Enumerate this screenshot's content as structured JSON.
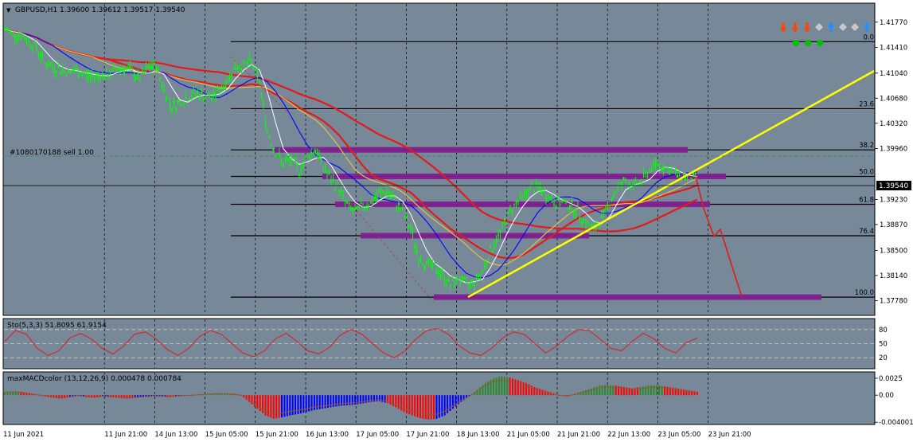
{
  "symbol_header": "GBPUSD,H1  1.39600 1.39612 1.39517 1.39540",
  "order_label": "#1080170188 sell 1.00",
  "current_price": "1.39540",
  "colors": {
    "background": "#778899",
    "candle": "#00ff00",
    "ema_red": "#e31a1a",
    "ma_blue": "#0000ff",
    "ma_yellow": "#e6c040",
    "ma_white": "#ffffff",
    "trendline": "#ffff00",
    "fib_zone": "#7f1f8f",
    "macd_up": "#2b8a2b",
    "macd_down": "#ff0000",
    "macd_blue": "#0000ff"
  },
  "chart_data": [
    {
      "type": "candlestick",
      "title": "GBPUSD,H1",
      "x_labels": [
        "11 Jun 2021",
        "11 Jun 21:00",
        "14 Jun 13:00",
        "15 Jun 05:00",
        "15 Jun 21:00",
        "16 Jun 13:00",
        "17 Jun 05:00",
        "17 Jun 21:00",
        "18 Jun 13:00",
        "21 Jun 05:00",
        "21 Jun 21:00",
        "22 Jun 13:00",
        "23 Jun 05:00",
        "23 Jun 21:00"
      ],
      "y_ticks": [
        "1.41770",
        "1.41410",
        "1.41040",
        "1.40680",
        "1.40320",
        "1.39960",
        "1.39230",
        "1.38870",
        "1.38500",
        "1.38140",
        "1.37780"
      ],
      "ylim": [
        1.3758,
        1.4203
      ],
      "close_path": [
        1.4167,
        1.416,
        1.4158,
        1.415,
        1.414,
        1.412,
        1.4112,
        1.411,
        1.4105,
        1.4108,
        1.4102,
        1.4098,
        1.4102,
        1.41,
        1.411,
        1.4112,
        1.4105,
        1.4095,
        1.4112,
        1.4115,
        1.408,
        1.4055,
        1.4062,
        1.407,
        1.4075,
        1.4072,
        1.407,
        1.408,
        1.4094,
        1.4115,
        1.4115,
        1.412,
        1.409,
        1.4022,
        1.399,
        1.3975,
        1.398,
        1.3965,
        1.3985,
        1.3995,
        1.397,
        1.395,
        1.3938,
        1.3915,
        1.3905,
        1.3915,
        1.3918,
        1.393,
        1.3935,
        1.392,
        1.3905,
        1.388,
        1.384,
        1.383,
        1.3825,
        1.3815,
        1.38,
        1.381,
        1.38,
        1.3805,
        1.382,
        1.385,
        1.387,
        1.3895,
        1.3915,
        1.3925,
        1.3938,
        1.394,
        1.393,
        1.392,
        1.3918,
        1.3915,
        1.3905,
        1.389,
        1.388,
        1.3895,
        1.392,
        1.394,
        1.395,
        1.394,
        1.395,
        1.3965,
        1.3975,
        1.3968,
        1.396,
        1.3958,
        1.3955,
        1.3954
      ],
      "fib_levels": [
        {
          "label": "0.0",
          "value": 1.4149
        },
        {
          "label": "23.6",
          "value": 1.4053
        },
        {
          "label": "38.2",
          "value": 1.3994
        },
        {
          "label": "50.0",
          "value": 1.3956
        },
        {
          "label": "61.8",
          "value": 1.3916
        },
        {
          "label": "76.4",
          "value": 1.3871
        },
        {
          "label": "100.0",
          "value": 1.3783
        }
      ],
      "trendline": {
        "from_price": 1.3783,
        "to_price": 1.4107
      },
      "projection": [
        1.3956,
        1.391,
        1.387,
        1.388,
        1.3783
      ]
    },
    {
      "type": "line",
      "title": "Sto(5,3,3) 51.8095 61.9154",
      "y_ticks": [
        "80",
        "50",
        "20"
      ],
      "ylim": [
        0,
        100
      ],
      "series": [
        {
          "name": "Sto main",
          "values": [
            55,
            78,
            70,
            40,
            25,
            35,
            62,
            72,
            60,
            40,
            28,
            45,
            70,
            75,
            60,
            38,
            25,
            40,
            65,
            78,
            70,
            50,
            30,
            22,
            35,
            60,
            72,
            55,
            35,
            28,
            42,
            68,
            80,
            70,
            50,
            30,
            20,
            35,
            60,
            78,
            82,
            70,
            45,
            30,
            25,
            40,
            62,
            75,
            70,
            50,
            30,
            45,
            65,
            80,
            78,
            60,
            40,
            35,
            55,
            72,
            60,
            40,
            30,
            52,
            62
          ]
        }
      ],
      "levels": [
        80,
        50,
        20
      ]
    },
    {
      "type": "bar",
      "title": "maxMACDcolor (13,12,26,9) 0.000478 0.000784",
      "y_ticks": [
        "0.00",
        "0.0025",
        "-0.004001"
      ],
      "ylim": [
        -0.0041,
        0.0032
      ],
      "values": [
        0.0005,
        0.0006,
        0.0005,
        0.0003,
        0.0001,
        -0.0002,
        -0.0004,
        -0.0005,
        -0.0003,
        -0.0001,
        -0.0003,
        -0.0004,
        -0.0002,
        -0.0003,
        -0.0004,
        -0.0005,
        -0.0004,
        -0.0003,
        -0.0002,
        -0.0002,
        -0.0003,
        -0.0002,
        -0.0001,
        0.0,
        0.0001,
        0.0002,
        0.0003,
        0.0003,
        0.0002,
        0.0,
        -0.001,
        -0.002,
        -0.003,
        -0.0035,
        -0.0033,
        -0.003,
        -0.0028,
        -0.0025,
        -0.0022,
        -0.002,
        -0.0018,
        -0.0016,
        -0.0015,
        -0.0014,
        -0.0012,
        -0.001,
        -0.0009,
        -0.0012,
        -0.0018,
        -0.0025,
        -0.003,
        -0.0034,
        -0.0036,
        -0.0035,
        -0.003,
        -0.002,
        -0.001,
        -0.0002,
        0.0008,
        0.0018,
        0.0025,
        0.0028,
        0.0026,
        0.0022,
        0.0018,
        0.0012,
        0.0008,
        0.0004,
        0.0,
        -0.0002,
        0.0002,
        0.0006,
        0.001,
        0.0014,
        0.0015,
        0.0014,
        0.0012,
        0.001,
        0.0012,
        0.0014,
        0.0015,
        0.0013,
        0.0011,
        0.0009,
        0.0007,
        0.0005
      ]
    }
  ],
  "signal_markers": {
    "arrows": [
      "down-red",
      "down-red",
      "down-red",
      "diamond-gray",
      "up-blue",
      "diamond-gray",
      "diamond-gray",
      "up-blue"
    ],
    "dots": [
      "green",
      "green",
      "green"
    ]
  }
}
